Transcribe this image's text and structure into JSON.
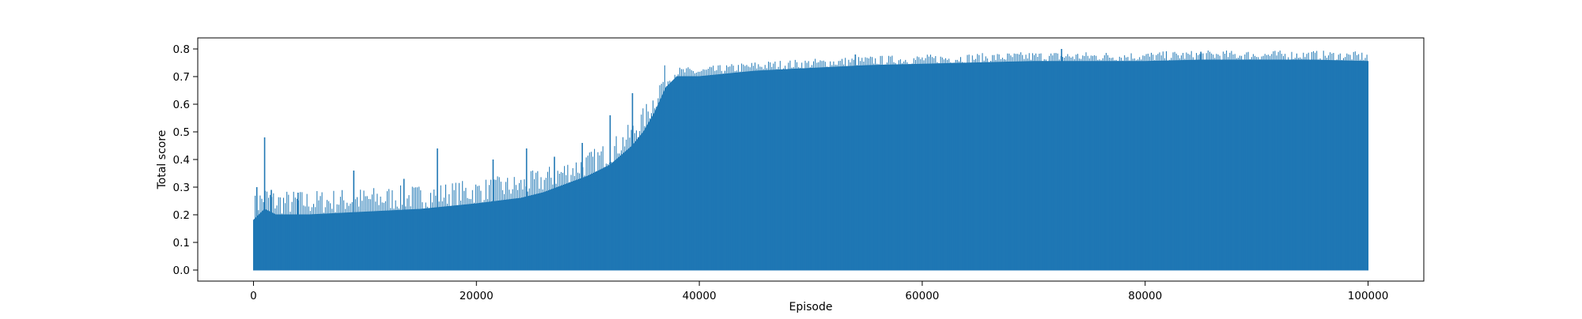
{
  "chart_data": {
    "type": "line",
    "title": "",
    "xlabel": "Episode",
    "ylabel": "Total score",
    "xlim": [
      -5000,
      105000
    ],
    "ylim": [
      -0.04,
      0.84
    ],
    "x_ticks": [
      0,
      20000,
      40000,
      60000,
      80000,
      100000
    ],
    "x_tick_labels": [
      "0",
      "20000",
      "40000",
      "60000",
      "80000",
      "100000"
    ],
    "y_ticks": [
      0.0,
      0.1,
      0.2,
      0.3,
      0.4,
      0.5,
      0.6,
      0.7,
      0.8
    ],
    "y_tick_labels": [
      "0.0",
      "0.1",
      "0.2",
      "0.3",
      "0.4",
      "0.5",
      "0.6",
      "0.7",
      "0.8"
    ],
    "grid": false,
    "legend": "none",
    "series": [
      {
        "color": "#1f77b4",
        "x_range": [
          0,
          100000
        ],
        "envelope_x": [
          0,
          1000,
          2000,
          5000,
          10000,
          15000,
          20000,
          24000,
          26000,
          28000,
          30000,
          32000,
          34000,
          35000,
          36000,
          37000,
          38000,
          40000,
          45000,
          50000,
          55000,
          60000,
          65000,
          70000,
          75000,
          80000,
          85000,
          90000,
          95000,
          100000
        ],
        "envelope_upper": [
          0.18,
          0.22,
          0.2,
          0.2,
          0.21,
          0.22,
          0.24,
          0.26,
          0.28,
          0.31,
          0.34,
          0.38,
          0.45,
          0.5,
          0.57,
          0.66,
          0.7,
          0.7,
          0.72,
          0.73,
          0.74,
          0.745,
          0.75,
          0.755,
          0.755,
          0.755,
          0.76,
          0.76,
          0.76,
          0.755
        ],
        "envelope_lower": [
          0.0,
          0.0,
          0.0,
          0.0,
          0.0,
          0.0,
          0.0,
          0.0,
          0.0,
          0.0,
          0.0,
          0.0,
          0.0,
          0.0,
          0.0,
          0.0,
          0.0,
          0.0,
          0.0,
          0.0,
          0.0,
          0.0,
          0.0,
          0.0,
          0.0,
          0.0,
          0.0,
          0.0,
          0.0,
          0.0
        ],
        "spikes": [
          {
            "x": 300,
            "y": 0.3
          },
          {
            "x": 1000,
            "y": 0.48
          },
          {
            "x": 1600,
            "y": 0.29
          },
          {
            "x": 4000,
            "y": 0.28
          },
          {
            "x": 9000,
            "y": 0.36
          },
          {
            "x": 13500,
            "y": 0.33
          },
          {
            "x": 16500,
            "y": 0.44
          },
          {
            "x": 21500,
            "y": 0.4
          },
          {
            "x": 24500,
            "y": 0.44
          },
          {
            "x": 27000,
            "y": 0.41
          },
          {
            "x": 29500,
            "y": 0.46
          },
          {
            "x": 32000,
            "y": 0.56
          },
          {
            "x": 34000,
            "y": 0.64
          },
          {
            "x": 54000,
            "y": 0.78
          },
          {
            "x": 72500,
            "y": 0.8
          },
          {
            "x": 85000,
            "y": 0.79
          }
        ]
      }
    ]
  }
}
